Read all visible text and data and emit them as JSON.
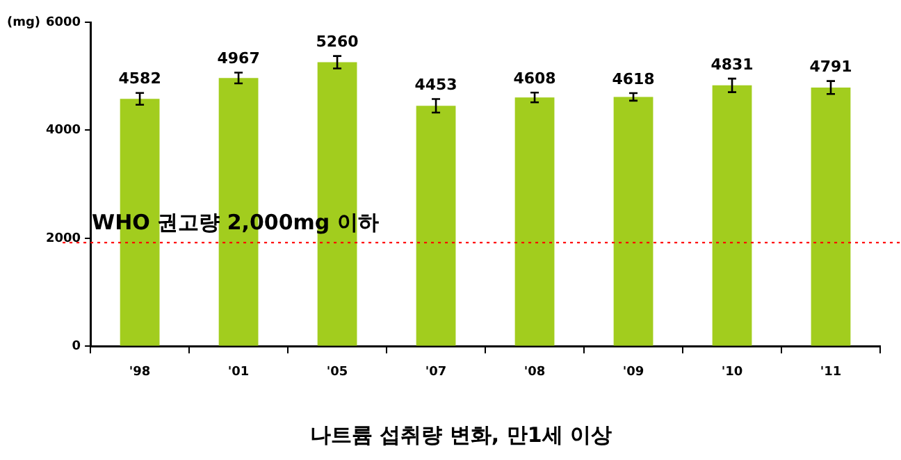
{
  "chart_data": {
    "type": "bar",
    "title": "나트륨 섭취량 변화, 만1세 이상",
    "ylabel": "(mg)",
    "categories": [
      "'98",
      "'01",
      "'05",
      "'07",
      "'08",
      "'09",
      "'10",
      "'11"
    ],
    "values": [
      4582,
      4967,
      5260,
      4453,
      4608,
      4618,
      4831,
      4791
    ],
    "errors": [
      110,
      100,
      115,
      125,
      90,
      70,
      125,
      120
    ],
    "color": "#a2cd1e",
    "ylim": [
      0,
      6000
    ],
    "yticks": [
      0,
      2000,
      4000,
      6000
    ],
    "ref_lines": [
      {
        "axis": "y",
        "value": 1920,
        "label": "WHO 권고량 2,000mg 이하",
        "color": "#ff0000",
        "line_style": "dotted"
      }
    ],
    "data_labels": true,
    "grid": false,
    "legend": false
  }
}
